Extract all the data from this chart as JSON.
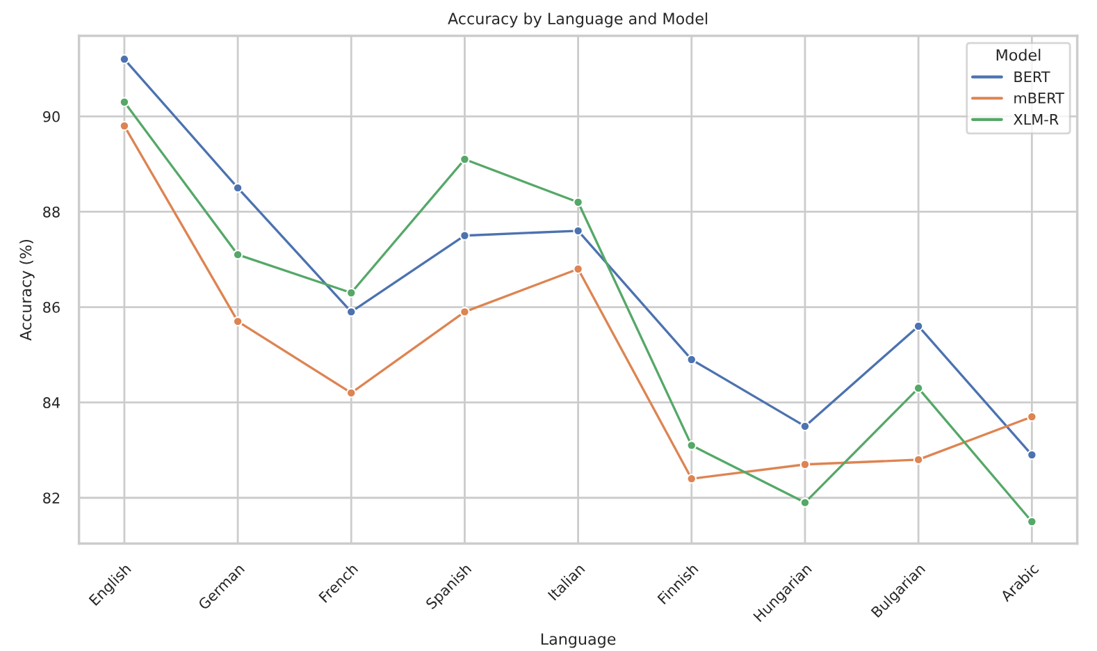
{
  "chart_data": {
    "type": "line",
    "title": "Accuracy by Language and Model",
    "xlabel": "Language",
    "ylabel": "Accuracy (%)",
    "legend_title": "Model",
    "categories": [
      "English",
      "German",
      "French",
      "Spanish",
      "Italian",
      "Finnish",
      "Hungarian",
      "Bulgarian",
      "Arabic"
    ],
    "series": [
      {
        "name": "BERT",
        "color": "#4c72b0",
        "values": [
          91.2,
          88.5,
          85.9,
          87.5,
          87.6,
          84.9,
          83.5,
          85.6,
          82.9
        ]
      },
      {
        "name": "mBERT",
        "color": "#dd8452",
        "values": [
          89.8,
          85.7,
          84.2,
          85.9,
          86.8,
          82.4,
          82.7,
          82.8,
          83.7
        ]
      },
      {
        "name": "XLM-R",
        "color": "#55a868",
        "values": [
          90.3,
          87.1,
          86.3,
          89.1,
          88.2,
          83.1,
          81.9,
          84.3,
          81.5
        ]
      }
    ],
    "ylim": [
      81.04,
      91.69
    ],
    "yticks": [
      82,
      84,
      86,
      88,
      90
    ],
    "grid": true,
    "legend": "top right",
    "marker": "circle",
    "line_style": "solid"
  }
}
